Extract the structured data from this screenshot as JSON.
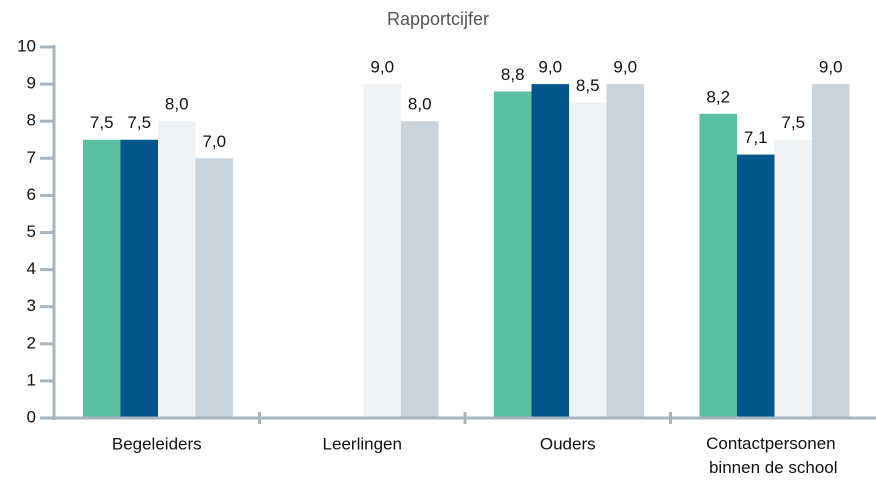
{
  "chart_data": {
    "type": "bar",
    "title": "Rapportcijfer",
    "categories": [
      "Begeleiders",
      "Leerlingen",
      "Ouders",
      "Contactpersonen binnen de school"
    ],
    "series": [
      {
        "color": "#5bbfa1",
        "values": [
          7.5,
          null,
          8.8,
          8.2
        ],
        "value_labels": [
          "7,5",
          null,
          "8,8",
          "8,2"
        ]
      },
      {
        "color": "#02568c",
        "values": [
          7.5,
          null,
          9.0,
          7.1
        ],
        "value_labels": [
          "7,5",
          null,
          "9,0",
          "7,1"
        ]
      },
      {
        "color": "#eef2f5",
        "values": [
          8.0,
          9.0,
          8.5,
          7.5
        ],
        "value_labels": [
          "8,0",
          "9,0",
          "8,5",
          "7,5"
        ]
      },
      {
        "color": "#c8d3dc",
        "values": [
          7.0,
          8.0,
          9.0,
          9.0
        ],
        "value_labels": [
          "7,0",
          "8,0",
          "9,0",
          "9,0"
        ]
      }
    ],
    "ylim": [
      0,
      10
    ],
    "yticks": [
      0,
      1,
      2,
      3,
      4,
      5,
      6,
      7,
      8,
      9,
      10
    ],
    "grid": false
  }
}
